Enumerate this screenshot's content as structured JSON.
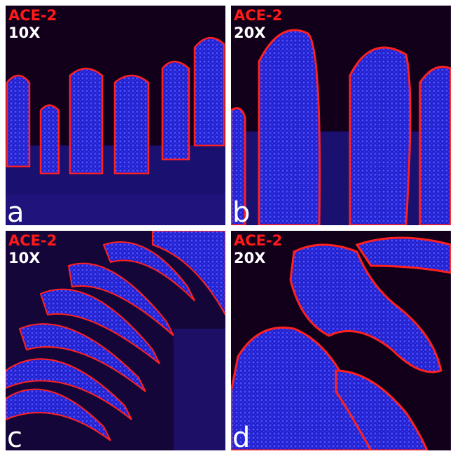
{
  "panels": [
    {
      "letter": "a",
      "stain": "ACE-2",
      "magnification": "10X"
    },
    {
      "letter": "b",
      "stain": "ACE-2",
      "magnification": "20X"
    },
    {
      "letter": "c",
      "stain": "ACE-2",
      "magnification": "10X"
    },
    {
      "letter": "d",
      "stain": "ACE-2",
      "magnification": "20X"
    }
  ],
  "colors": {
    "stain_ace2": "#ff1a1a",
    "nuclei": "#2a2aff",
    "background": "#12001a"
  }
}
